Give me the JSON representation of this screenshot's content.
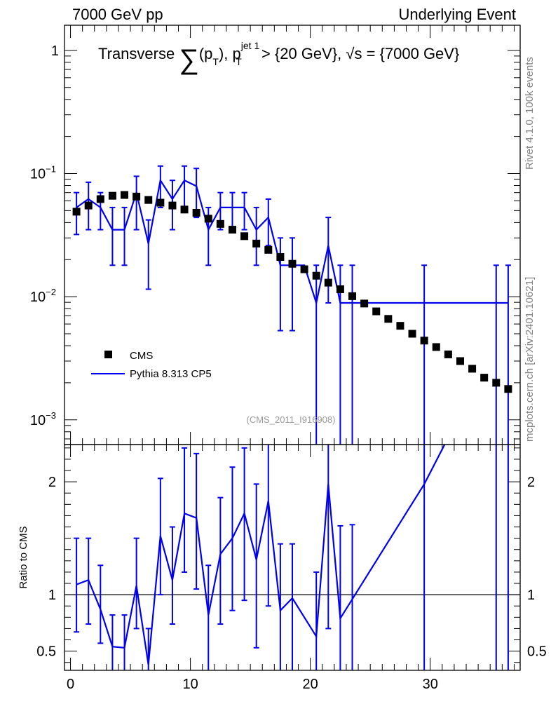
{
  "header": {
    "left": "7000 GeV pp",
    "right": "Underlying Event"
  },
  "side_labels": {
    "rivet": "Rivet 4.1.0,  100k events",
    "mcplots": "mcplots.cern.ch [arXiv:2401.10621]"
  },
  "title": {
    "prefix": "Transverse ",
    "sum": "∑",
    "pt_open": "(p",
    "pt_sub": "T",
    "pt_close": "),  p",
    "jet_sup": "jet 1",
    "jet_sub": "T",
    "rest": " > {20 GeV}, √s = {7000 GeV}"
  },
  "watermark": "(CMS_2011_I916908)",
  "legend": {
    "data_label": "CMS",
    "mc_label": "Pythia 8.313 CP5"
  },
  "ratio_ylabel": "Ratio to CMS",
  "colors": {
    "mc": "#0000ee",
    "data": "#000000",
    "side": "#808080"
  },
  "chart_data": [
    {
      "type": "scatter",
      "panel": "main",
      "yscale": "log",
      "xlim": [
        -0.5,
        37.5
      ],
      "ylim": [
        0.00063,
        1.6
      ],
      "ytick_values": [
        0.001,
        0.01,
        0.1,
        1
      ],
      "ytick_labels": [
        {
          "base": "10",
          "exp": "−3"
        },
        {
          "base": "10",
          "exp": "−2"
        },
        {
          "base": "10",
          "exp": "−1"
        },
        {
          "base": "1",
          "exp": ""
        }
      ],
      "series": [
        {
          "name": "CMS",
          "x": [
            0.5,
            1.5,
            2.5,
            3.5,
            4.5,
            5.5,
            6.5,
            7.5,
            8.5,
            9.5,
            10.5,
            11.5,
            12.5,
            13.5,
            14.5,
            15.5,
            16.5,
            17.5,
            18.5,
            19.5,
            20.5,
            21.5,
            22.5,
            23.5,
            24.5,
            25.5,
            26.5,
            27.5,
            28.5,
            29.5,
            30.5,
            31.5,
            32.5,
            33.5,
            34.5,
            35.5,
            36.5
          ],
          "y": [
            0.049,
            0.055,
            0.062,
            0.066,
            0.067,
            0.065,
            0.061,
            0.058,
            0.055,
            0.051,
            0.048,
            0.043,
            0.039,
            0.035,
            0.031,
            0.027,
            0.024,
            0.021,
            0.0185,
            0.0167,
            0.0148,
            0.013,
            0.0115,
            0.0101,
            0.0088,
            0.0076,
            0.0066,
            0.0058,
            0.005,
            0.0044,
            0.0039,
            0.0034,
            0.003,
            0.0026,
            0.0022,
            0.002,
            0.00178
          ]
        },
        {
          "name": "Pythia 8.313 CP5",
          "x": [
            0.5,
            1.5,
            2.5,
            3.5,
            4.5,
            5.5,
            6.5,
            7.5,
            8.5,
            9.5,
            10.5,
            11.5,
            12.5,
            13.5,
            14.5,
            15.5,
            16.5,
            17.5,
            18.5,
            19.5,
            20.5,
            21.5,
            22.5,
            23.5,
            24.5,
            25.5,
            26.5,
            27.5,
            28.5,
            29.5,
            30.5,
            31.5,
            32.5,
            33.5,
            34.5,
            35.5,
            36.5
          ],
          "y": [
            0.053,
            0.062,
            0.053,
            0.035,
            0.035,
            0.07,
            0.027,
            0.088,
            0.062,
            0.088,
            0.079,
            0.035,
            0.053,
            0.053,
            0.053,
            0.035,
            0.044,
            0.018,
            0.018,
            0.018,
            0.0089,
            0.026,
            0.0089,
            0.0089,
            0.0089,
            0.0089,
            0.0089,
            0.0089,
            0.0089,
            0.0089,
            0.0089,
            0.0089,
            0.0089,
            0.0089,
            0.0089,
            0.0089,
            0.0089
          ],
          "err_lo": [
            0.032,
            0.035,
            0.035,
            0.018,
            0.018,
            0.035,
            0.0115,
            0.053,
            0.035,
            0.053,
            0.044,
            0.018,
            0.035,
            0.035,
            0.035,
            0.018,
            0.026,
            0.0053,
            0.0053,
            null,
            0.0001,
            0.0089,
            0.0001,
            0.0001,
            null,
            null,
            null,
            null,
            null,
            0.0001,
            null,
            null,
            null,
            null,
            null,
            0.0001,
            0.0001
          ],
          "err_hi": [
            0.07,
            0.085,
            0.07,
            0.053,
            0.053,
            0.095,
            0.042,
            0.115,
            0.088,
            0.115,
            0.11,
            0.053,
            0.07,
            0.07,
            0.07,
            0.053,
            0.062,
            0.03,
            0.03,
            null,
            0.018,
            0.044,
            0.018,
            0.018,
            null,
            null,
            null,
            null,
            null,
            0.018,
            null,
            null,
            null,
            null,
            null,
            0.018,
            0.018
          ]
        }
      ]
    },
    {
      "type": "line",
      "panel": "ratio",
      "xlabel": "",
      "ylabel": "Ratio to CMS",
      "xlim": [
        -0.5,
        37.5
      ],
      "ylim": [
        0.33,
        2.33
      ],
      "xticks": [
        0,
        10,
        20,
        30
      ],
      "yticks": [
        0.5,
        1,
        2
      ],
      "reference_line": 1,
      "series": [
        {
          "name": "Pythia 8.313 CP5 / CMS",
          "x": [
            0.5,
            1.5,
            2.5,
            3.5,
            4.5,
            5.5,
            6.5,
            7.5,
            8.5,
            9.5,
            10.5,
            11.5,
            12.5,
            13.5,
            14.5,
            15.5,
            16.5,
            17.5,
            18.5,
            20.5,
            21.5,
            22.5,
            29.5,
            31.3
          ],
          "y": [
            1.09,
            1.13,
            0.87,
            0.54,
            0.53,
            1.08,
            0.38,
            1.52,
            1.13,
            1.72,
            1.68,
            0.82,
            1.36,
            1.5,
            1.72,
            1.31,
            1.83,
            0.86,
            0.97,
            0.63,
            1.98,
            0.79,
            1.98,
            2.35
          ],
          "err_lo": [
            0.67,
            0.74,
            0.57,
            0.28,
            0.28,
            0.7,
            0.28,
            1.0,
            0.74,
            1.2,
            1.05,
            0.3,
            0.74,
            0.86,
            0.95,
            0.53,
            0.9,
            0.28,
            0.28,
            0.28,
            0.7,
            0.28,
            0.28,
            null
          ],
          "err_hi": [
            1.5,
            1.5,
            1.26,
            0.82,
            0.82,
            1.5,
            0.7,
            2.03,
            1.6,
            2.3,
            2.25,
            1.26,
            1.86,
            2.13,
            2.3,
            1.98,
            2.4,
            1.45,
            1.45,
            1.2,
            2.4,
            1.61,
            2.4,
            null
          ]
        }
      ],
      "extra_error_bars": [
        {
          "x": 23.5,
          "lo": 0.28,
          "hi": 1.62
        },
        {
          "x": 35.5,
          "lo": 0.28,
          "hi": 2.4
        },
        {
          "x": 36.5,
          "lo": 0.28,
          "hi": 2.4
        }
      ]
    }
  ]
}
